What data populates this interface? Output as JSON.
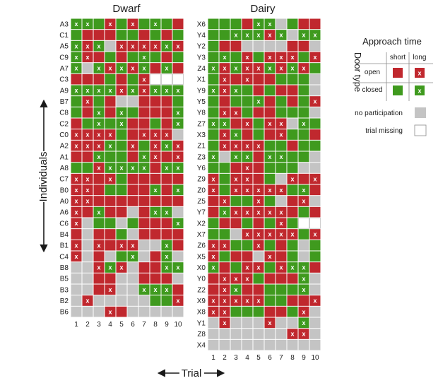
{
  "chart_data": {
    "type": "heatmap",
    "ylabel": "Individuals",
    "xlabel": "Trial",
    "trials": [
      "1",
      "2",
      "3",
      "4",
      "5",
      "6",
      "7",
      "8",
      "9",
      "10"
    ],
    "codes": {
      "R": "open, short",
      "r": "open, long",
      "G": "closed, short",
      "g": "closed, long",
      "N": "no participation",
      "M": "trial missing"
    },
    "colors": {
      "open": "#c0282e",
      "closed": "#3f9a1e",
      "no_participation": "#c4c4c4",
      "trial_missing": "#ffffff",
      "grid": "#ffffff",
      "mark": "#ffffff"
    },
    "panels": [
      {
        "title": "Dwarf",
        "individuals": [
          "A3",
          "C1",
          "A5",
          "C9",
          "A7",
          "C3",
          "A9",
          "B7",
          "C8",
          "C2",
          "C0",
          "A2",
          "A1",
          "A8",
          "C7",
          "B0",
          "A0",
          "A6",
          "C6",
          "B4",
          "B1",
          "C4",
          "B8",
          "B5",
          "B3",
          "B2",
          "B6"
        ],
        "cells": [
          "ggGrGrGgGR",
          "GRRRGGRGRG",
          "grgNrrrrgr",
          "grRGRGgGRG",
          "gNgrgrgRgR",
          "RRRGRGrMMM",
          "ggggrgrggg",
          "GrGRNNRRRG",
          "GRgRgGRRRg",
          "RGgGgRRGRg",
          "rrrrGRrrrN",
          "rrrgGrGrgr",
          "RRgGGRgrRr",
          "GGrggggRgg",
          "rrRrGRRRRR",
          "rrRGGRRgRg",
          "rrRRRRRRRR",
          "rRgRRNRggN",
          "rNGGNGRRRg",
          "RNRRGNRRRR",
          "rNrRrrNNgR",
          "rNRNGgNRgN",
          "NNrgrNRRgg",
          "NNRRNNRRRN",
          "NNRrNNgggR",
          "NrNNNNNGGr",
          "NNNrRNNNNN"
        ]
      },
      {
        "title": "Dairy",
        "individuals": [
          "X6",
          "Y4",
          "Y2",
          "Y3",
          "Z4",
          "X1",
          "Y9",
          "Y5",
          "Y8",
          "Z7",
          "X3",
          "Z1",
          "Z3",
          "Y6",
          "Z9",
          "Z0",
          "Z5",
          "Y7",
          "X2",
          "X7",
          "Z6",
          "X5",
          "X0",
          "Y0",
          "Z2",
          "X9",
          "X8",
          "Y1",
          "Z8",
          "X4"
        ],
        "cells": [
          "GGGRggNGRR",
          "GGgggrgNgg",
          "GRRNNNNRRN",
          "GgGrGrrrGr",
          "grgrrgrgrG",
          "GrRrRRGGGN",
          "grgGRGRRGN",
          "GRGGgRGRGr",
          "GrrGRRGGGN",
          "ggRrGrrNgG",
          "GrgRGRrGGR",
          "GrrrrGGRGG",
          "gNggRggGGN",
          "GGRrRGGGNN",
          "rGrrRGNrRr",
          "rGrrrrrGgR",
          "RrGGrGNRrN",
          "RgrrrrrRGR",
          "GRRGRGrGMM",
          "GGNrrrrrGr",
          "rrGGrGRGNG",
          "rGRRNrRGNG",
          "gRGrrGrggR",
          "RrrrGRRRgN",
          "RrgRRGGGgN",
          "rrrrrGGRRr",
          "rrGGGRRGrN",
          "NrNNNrNNgN",
          "NNNNNNNrrN",
          "NNNNNNNNNN"
        ]
      }
    ],
    "legend": {
      "title": "Approach time",
      "columns": [
        "short",
        "long"
      ],
      "rows_title": "Door type",
      "rows": [
        "open",
        "closed"
      ],
      "no_participation": "no participation",
      "trial_missing": "trial missing"
    }
  }
}
